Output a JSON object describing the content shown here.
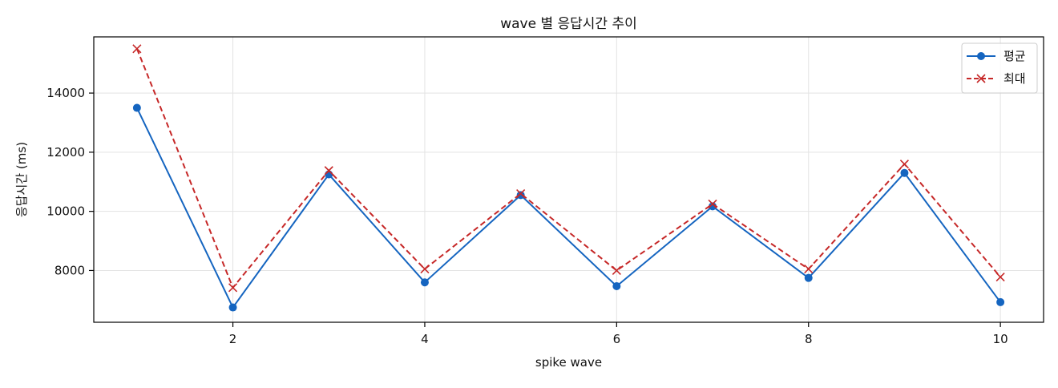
{
  "chart_data": {
    "type": "line",
    "title": "wave 별 응답시간 추이",
    "xlabel": "spike wave",
    "ylabel": "응답시간 (ms)",
    "x": [
      1,
      2,
      3,
      4,
      5,
      6,
      7,
      8,
      9,
      10
    ],
    "xlim": [
      0.55,
      10.45
    ],
    "ylim": [
      6250,
      15900
    ],
    "xticks": [
      2,
      4,
      6,
      8,
      10
    ],
    "yticks": [
      8000,
      10000,
      12000,
      14000
    ],
    "grid": true,
    "legend_position": "top-right",
    "series": [
      {
        "name": "평균",
        "values": [
          13500,
          6750,
          11250,
          7600,
          10550,
          7470,
          10170,
          7750,
          11300,
          6930
        ],
        "color": "#1565c0",
        "marker": "circle",
        "line_style": "solid"
      },
      {
        "name": "최대",
        "values": [
          15500,
          7420,
          11380,
          8050,
          10600,
          8000,
          10250,
          8050,
          11600,
          7780
        ],
        "color": "#c62828",
        "marker": "x",
        "line_style": "dashed"
      }
    ]
  }
}
